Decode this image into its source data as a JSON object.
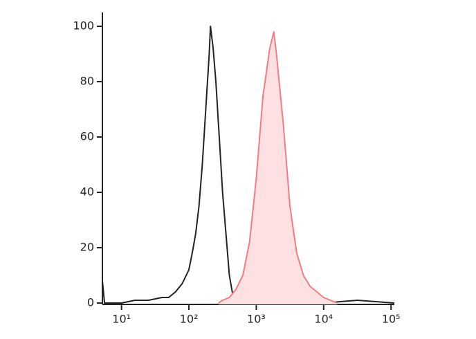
{
  "chart_data": {
    "type": "line",
    "xscale": "log",
    "xlim": [
      5.2,
      112000
    ],
    "ylim": [
      -0.5,
      105
    ],
    "xticks": [
      {
        "value": 10,
        "label": "10¹"
      },
      {
        "value": 100,
        "label": "10²"
      },
      {
        "value": 1000,
        "label": "10³"
      },
      {
        "value": 10000,
        "label": "10⁴"
      },
      {
        "value": 100000,
        "label": "10⁵"
      }
    ],
    "yticks": [
      0,
      20,
      40,
      60,
      80,
      100
    ],
    "series": [
      {
        "color": "#222222",
        "x": [
          5.2,
          5.6,
          10,
          15.8,
          25.1,
          39.8,
          50.1,
          63.1,
          79.4,
          100,
          112,
          126,
          141,
          158,
          178,
          200,
          209,
          229,
          251,
          282,
          316,
          355,
          398,
          447,
          501,
          631,
          891,
          1000,
          1259,
          1995,
          10000,
          31623,
          112000
        ],
        "values": [
          8,
          0,
          0,
          1,
          1,
          2,
          2,
          4,
          7,
          12,
          18,
          25,
          35,
          50,
          70,
          90,
          100,
          92,
          80,
          60,
          40,
          25,
          10,
          3,
          1,
          1,
          2,
          3,
          1,
          0,
          0,
          1,
          0
        ]
      },
      {
        "color": "#f07c84",
        "fill": "#fde0e2",
        "x": [
          275,
          316,
          398,
          501,
          631,
          794,
          1000,
          1259,
          1585,
          1820,
          1995,
          2512,
          3162,
          3981,
          5012,
          6310,
          7943,
          10000,
          12589,
          15849
        ],
        "values": [
          0,
          1,
          2,
          5,
          10,
          22,
          45,
          75,
          92,
          98,
          90,
          65,
          35,
          18,
          10,
          6,
          4,
          2,
          1,
          0
        ]
      }
    ]
  }
}
